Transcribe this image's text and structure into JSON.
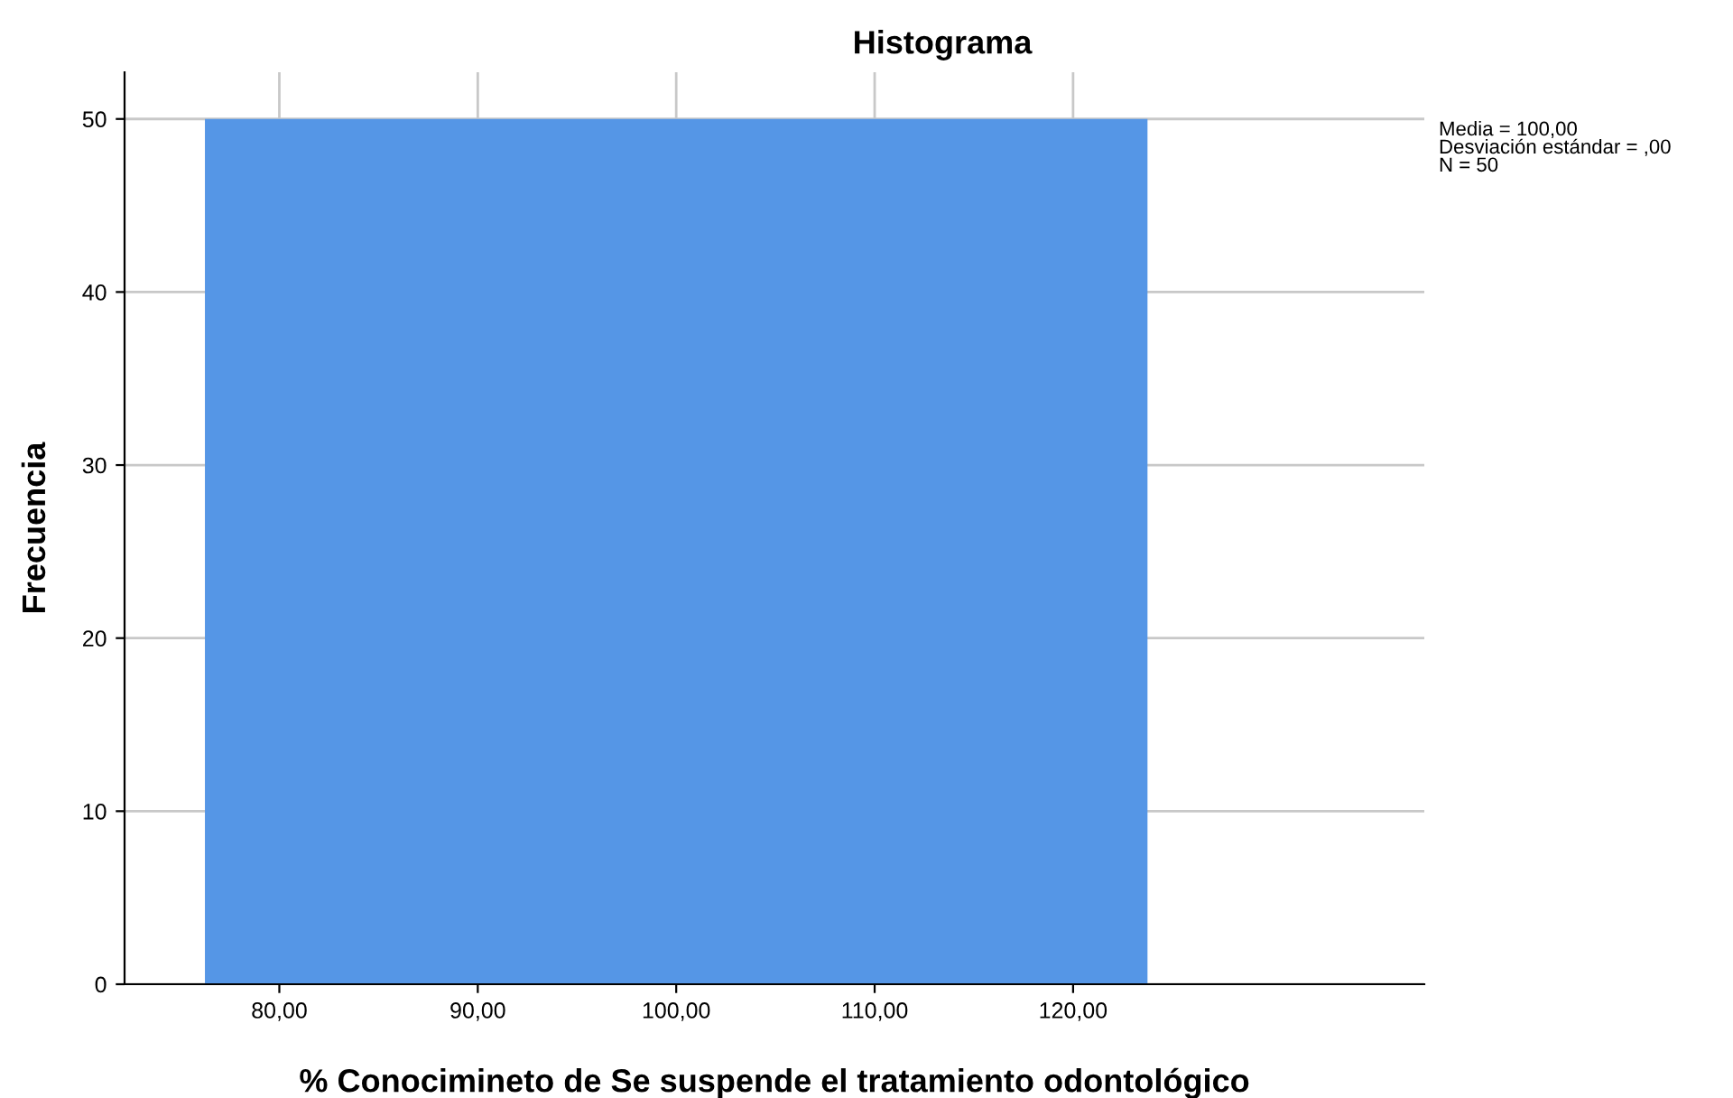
{
  "chart_data": {
    "type": "histogram",
    "title": "Histograma",
    "xlabel": "% Conocimineto de Se suspende el tratamiento odontológico",
    "ylabel": "Frecuencia",
    "bins": [
      76.25,
      123.75
    ],
    "values": [
      50
    ],
    "color": "#5596e6",
    "xlim": [
      72.2,
      137.7
    ],
    "xticks": [
      {
        "value": 80,
        "label": "80,00"
      },
      {
        "value": 90,
        "label": "90,00"
      },
      {
        "value": 100,
        "label": "100,00"
      },
      {
        "value": 110,
        "label": "110,00"
      },
      {
        "value": 120,
        "label": "120,00"
      }
    ],
    "ylim": [
      0,
      52.7
    ],
    "yticks": [
      0,
      10,
      20,
      30,
      40,
      50
    ],
    "grid": true,
    "legend": false,
    "annotations": [
      "Media = 100,00\nDesviación estándar = ,00\nN = 50"
    ]
  }
}
